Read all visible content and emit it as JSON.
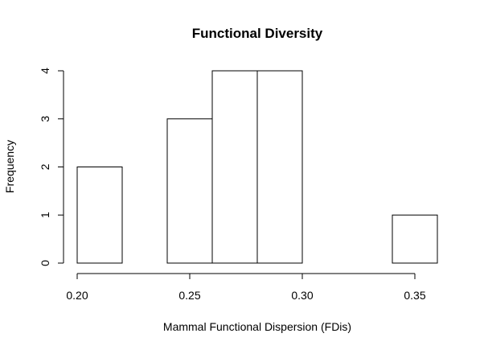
{
  "chart_data": {
    "type": "bar",
    "title": "Functional Diversity",
    "xlabel": "Mammal Functional Dispersion (FDis)",
    "ylabel": "Frequency",
    "bins": [
      {
        "start": 0.2,
        "end": 0.22,
        "count": 2
      },
      {
        "start": 0.22,
        "end": 0.24,
        "count": 0
      },
      {
        "start": 0.24,
        "end": 0.26,
        "count": 3
      },
      {
        "start": 0.26,
        "end": 0.28,
        "count": 4
      },
      {
        "start": 0.28,
        "end": 0.3,
        "count": 4
      },
      {
        "start": 0.3,
        "end": 0.32,
        "count": 0
      },
      {
        "start": 0.32,
        "end": 0.34,
        "count": 0
      },
      {
        "start": 0.34,
        "end": 0.36,
        "count": 1
      }
    ],
    "xlim": [
      0.2,
      0.36
    ],
    "ylim": [
      0,
      4
    ],
    "x_ticks": [
      0.2,
      0.25,
      0.3,
      0.35
    ],
    "x_tick_labels": [
      "0.20",
      "0.25",
      "0.30",
      "0.35"
    ],
    "y_ticks": [
      0,
      1,
      2,
      3,
      4
    ],
    "y_tick_labels": [
      "0",
      "1",
      "2",
      "3",
      "4"
    ],
    "grid": false,
    "legend": "none"
  }
}
